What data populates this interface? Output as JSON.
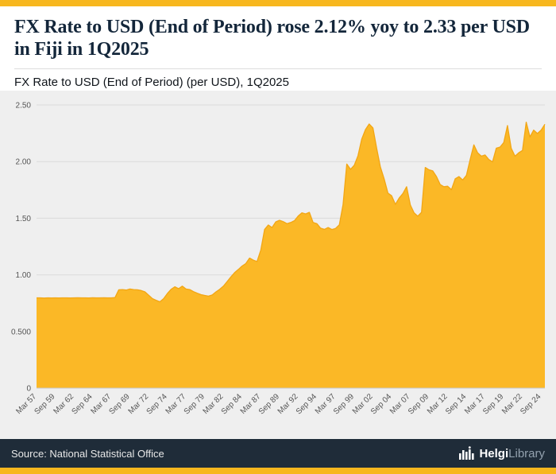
{
  "accent_color": "#F7B71E",
  "header": {
    "title": "FX Rate to USD (End of Period) rose 2.12% yoy to 2.33 per USD in Fiji in 1Q2025",
    "subtitle": "FX Rate to USD (End of Period) (per USD), 1Q2025"
  },
  "footer": {
    "source": "Source: National Statistical Office",
    "brand_bold": "Helgi",
    "brand_light": "Library"
  },
  "chart_data": {
    "type": "area",
    "title": "FX Rate to USD (End of Period) (per USD), 1Q2025",
    "series_name": "FX Rate to USD (End of Period), per USD, Fiji",
    "frequency": "semiannual",
    "x_start": "Mar 1957",
    "x_end": "Mar 2025",
    "x_tick_interval": 5,
    "x_tick_labels": [
      "Mar 57",
      "Sep 59",
      "Mar 62",
      "Sep 64",
      "Mar 67",
      "Sep 69",
      "Mar 72",
      "Sep 74",
      "Mar 77",
      "Sep 79",
      "Mar 82",
      "Sep 84",
      "Mar 87",
      "Sep 89",
      "Mar 92",
      "Sep 94",
      "Mar 97",
      "Sep 99",
      "Mar 02",
      "Sep 04",
      "Mar 07",
      "Sep 09",
      "Mar 12",
      "Sep 14",
      "Mar 17",
      "Sep 19",
      "Mar 22",
      "Sep 24"
    ],
    "y_ticks": [
      0,
      0.5,
      1.0,
      1.5,
      2.0,
      2.5
    ],
    "y_tick_labels": [
      "0",
      "0.500",
      "1.00",
      "1.50",
      "2.00",
      "2.50"
    ],
    "ylim": [
      0,
      2.5
    ],
    "grid": "horizontal",
    "legend": "none",
    "last_value": 2.33,
    "values": [
      0.797,
      0.797,
      0.795,
      0.797,
      0.796,
      0.797,
      0.796,
      0.797,
      0.797,
      0.796,
      0.797,
      0.798,
      0.797,
      0.797,
      0.796,
      0.798,
      0.797,
      0.797,
      0.798,
      0.797,
      0.797,
      0.8,
      0.868,
      0.87,
      0.866,
      0.875,
      0.87,
      0.868,
      0.862,
      0.85,
      0.82,
      0.79,
      0.775,
      0.762,
      0.79,
      0.835,
      0.872,
      0.895,
      0.878,
      0.9,
      0.875,
      0.87,
      0.852,
      0.838,
      0.825,
      0.818,
      0.812,
      0.822,
      0.85,
      0.872,
      0.9,
      0.94,
      0.982,
      1.02,
      1.048,
      1.078,
      1.1,
      1.148,
      1.13,
      1.118,
      1.22,
      1.4,
      1.44,
      1.418,
      1.468,
      1.482,
      1.47,
      1.452,
      1.462,
      1.478,
      1.52,
      1.548,
      1.538,
      1.552,
      1.462,
      1.452,
      1.412,
      1.402,
      1.418,
      1.4,
      1.41,
      1.442,
      1.62,
      1.978,
      1.932,
      1.968,
      2.052,
      2.198,
      2.282,
      2.332,
      2.298,
      2.118,
      1.952,
      1.848,
      1.722,
      1.698,
      1.622,
      1.678,
      1.718,
      1.778,
      1.618,
      1.548,
      1.518,
      1.552,
      1.948,
      1.928,
      1.918,
      1.868,
      1.798,
      1.778,
      1.782,
      1.752,
      1.848,
      1.868,
      1.838,
      1.878,
      2.018,
      2.148,
      2.078,
      2.048,
      2.058,
      2.018,
      1.998,
      2.118,
      2.128,
      2.168,
      2.318,
      2.118,
      2.048,
      2.078,
      2.098,
      2.348,
      2.218,
      2.278,
      2.248,
      2.278,
      2.33
    ],
    "colors": {
      "fill": "#FBB826",
      "line": "#F2A614",
      "plot_bg": "#EFEFEF",
      "grid": "#DBDBDB",
      "baseline": "#C8C8C8",
      "axis_text": "#555555"
    }
  }
}
